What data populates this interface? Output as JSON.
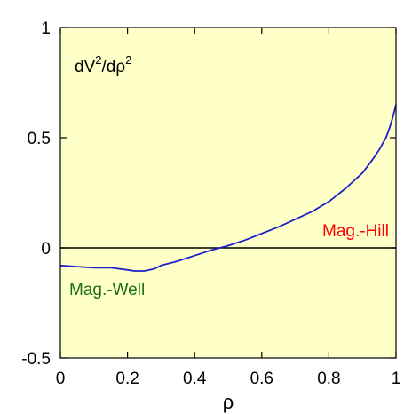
{
  "chart_data": {
    "type": "line",
    "title": "dV²/dρ²",
    "title_parts": [
      "dV",
      "2",
      "/dρ",
      "2"
    ],
    "xlabel": "ρ",
    "ylabel": "",
    "xlim": [
      0,
      1
    ],
    "ylim": [
      -0.5,
      1
    ],
    "x_ticks": [
      "0",
      "0.2",
      "0.4",
      "0.6",
      "0.8",
      "1"
    ],
    "y_ticks": [
      "-0.5",
      "0",
      "0.5",
      "1"
    ],
    "grid": false,
    "background_color": "#ffffc8",
    "zero_line": true,
    "series": [
      {
        "color": "#1e22c8",
        "x": [
          0.0,
          0.05,
          0.1,
          0.15,
          0.2,
          0.22,
          0.25,
          0.28,
          0.3,
          0.35,
          0.4,
          0.45,
          0.5,
          0.55,
          0.6,
          0.65,
          0.7,
          0.75,
          0.8,
          0.85,
          0.9,
          0.93,
          0.95,
          0.97,
          0.98,
          0.99,
          1.0
        ],
        "y": [
          -0.08,
          -0.085,
          -0.09,
          -0.09,
          -0.1,
          -0.105,
          -0.105,
          -0.095,
          -0.08,
          -0.06,
          -0.035,
          -0.01,
          0.01,
          0.035,
          0.065,
          0.095,
          0.13,
          0.165,
          0.21,
          0.27,
          0.34,
          0.4,
          0.445,
          0.5,
          0.54,
          0.59,
          0.65
        ]
      }
    ],
    "annotations": [
      {
        "text": "Mag.-Well",
        "color": "#1a6e1a"
      },
      {
        "text": "Mag.-Hill",
        "color": "#ff0000"
      }
    ]
  }
}
